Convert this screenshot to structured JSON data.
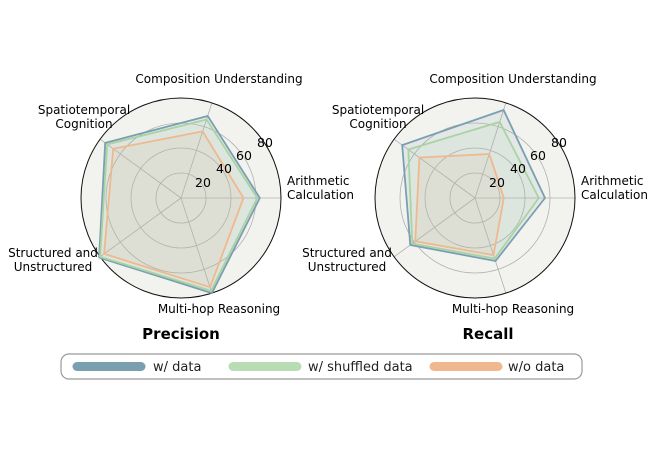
{
  "chart_data": [
    {
      "type": "radar",
      "title": "Precision",
      "axes": [
        "Arithmetic\nCalculation",
        "Composition Understanding",
        "Spatiotemporal\nCognition",
        "Structured and\nUnstructured",
        "Multi-hop Reasoning"
      ],
      "rlim": [
        0,
        80
      ],
      "r_ticks": [
        20,
        40,
        60,
        80
      ],
      "series": [
        {
          "name": "w/ data",
          "values": [
            63,
            69,
            75,
            81,
            80
          ]
        },
        {
          "name": "w/ shuffled data",
          "values": [
            61,
            66,
            73,
            80,
            78
          ]
        },
        {
          "name": "w/o data",
          "values": [
            50,
            56,
            67,
            76,
            75
          ]
        }
      ]
    },
    {
      "type": "radar",
      "title": "Recall",
      "axes": [
        "Arithmetic\nCalculation",
        "Composition Understanding",
        "Spatiotemporal\nCognition",
        "Structured and\nUnstructured",
        "Multi-hop Reasoning"
      ],
      "rlim": [
        0,
        80
      ],
      "r_ticks": [
        20,
        40,
        60,
        80
      ],
      "series": [
        {
          "name": "w/ data",
          "values": [
            56,
            74,
            72,
            64,
            53
          ]
        },
        {
          "name": "w/ shuffled data",
          "values": [
            51,
            64,
            66,
            62,
            51
          ]
        },
        {
          "name": "w/o data",
          "values": [
            23,
            37,
            55,
            59,
            48
          ]
        }
      ]
    }
  ],
  "legend": {
    "placement": "bottom-center",
    "items": [
      {
        "label": "w/ data",
        "color": "#7a9fb0"
      },
      {
        "label": "w/ shuffled data",
        "color": "#b8dcb3"
      },
      {
        "label": "w/o data",
        "color": "#f0b88f"
      }
    ]
  },
  "colors": {
    "w/ data": "#7a9fb0",
    "w/ shuffled data": "#a9d3a3",
    "w/o data": "#f0b88f",
    "plot_background": "#f2f2ee",
    "grid": "#b0b0b0"
  }
}
